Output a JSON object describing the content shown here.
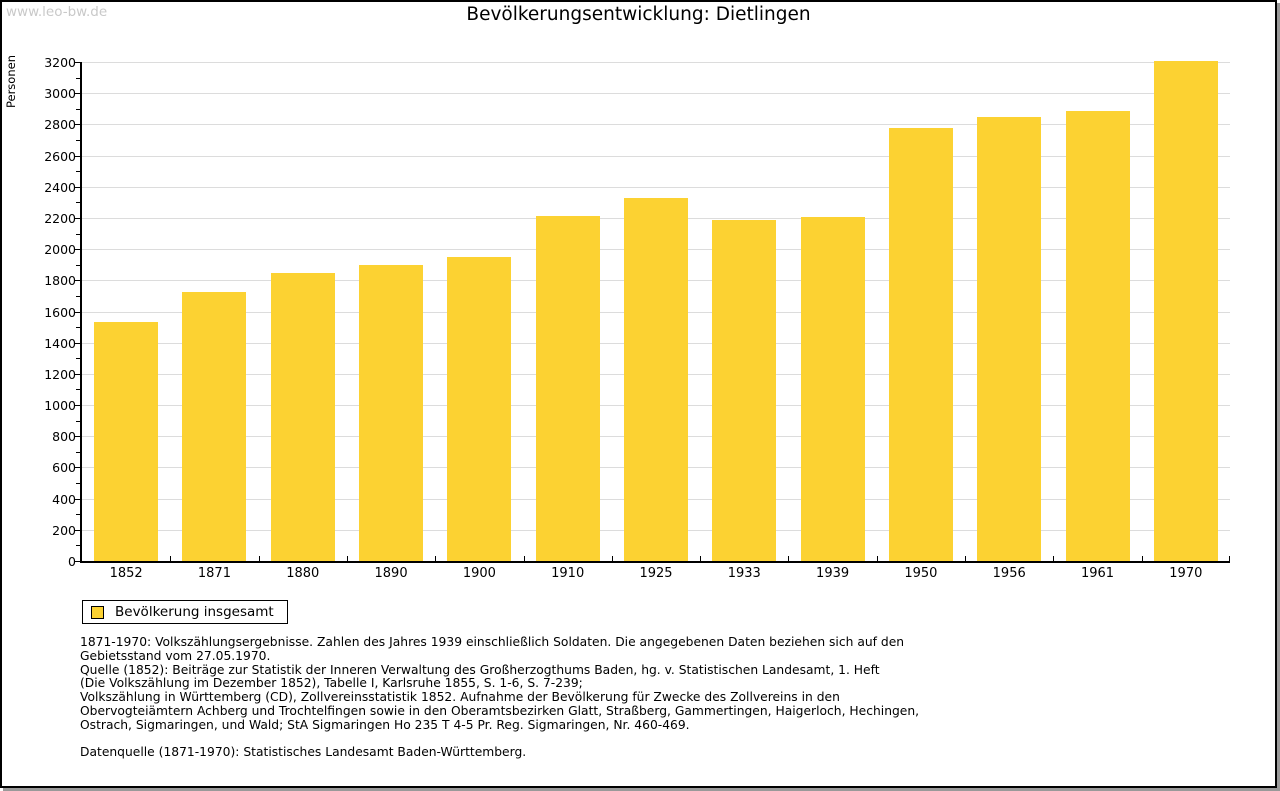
{
  "watermark": "www.leo-bw.de",
  "chart_data": {
    "type": "bar",
    "title": "Bevölkerungsentwicklung: Dietlingen",
    "xlabel": "",
    "ylabel": "Personen",
    "categories": [
      "1852",
      "1871",
      "1880",
      "1890",
      "1900",
      "1910",
      "1925",
      "1933",
      "1939",
      "1950",
      "1956",
      "1961",
      "1970"
    ],
    "values": [
      1530,
      1725,
      1845,
      1900,
      1950,
      2210,
      2330,
      2190,
      2205,
      2780,
      2850,
      2885,
      3205
    ],
    "ylim": [
      0,
      3200
    ],
    "ytick_step": 200,
    "ytick_minor_step": 100,
    "grid": true,
    "legend_position": "bottom-left",
    "bar_color": "#FCD232",
    "grid_color": "#dcdcdc"
  },
  "legend": {
    "label": "Bevölkerung insgesamt"
  },
  "notes": {
    "lines": [
      "1871-1970: Volkszählungsergebnisse. Zahlen des Jahres 1939 einschließlich Soldaten. Die angegebenen Daten beziehen sich auf den",
      "Gebietsstand vom 27.05.1970.",
      "Quelle (1852): Beiträge zur Statistik der Inneren Verwaltung des Großherzogthums Baden, hg. v. Statistischen Landesamt, 1. Heft",
      "(Die Volkszählung im Dezember 1852), Tabelle I, Karlsruhe 1855, S. 1-6, S. 7-239;",
      "Volkszählung in Württemberg (CD), Zollvereinsstatistik 1852. Aufnahme der Bevölkerung für Zwecke des Zollvereins in den",
      "Obervogteiämtern Achberg und Trochtelfingen sowie in den Oberamtsbezirken Glatt, Straßberg, Gammertingen, Haigerloch, Hechingen,",
      "Ostrach, Sigmaringen, und Wald; StA Sigmaringen Ho 235 T 4-5 Pr. Reg. Sigmaringen, Nr. 460-469."
    ],
    "datasource": "Datenquelle (1871-1970): Statistisches Landesamt Baden-Württemberg."
  }
}
